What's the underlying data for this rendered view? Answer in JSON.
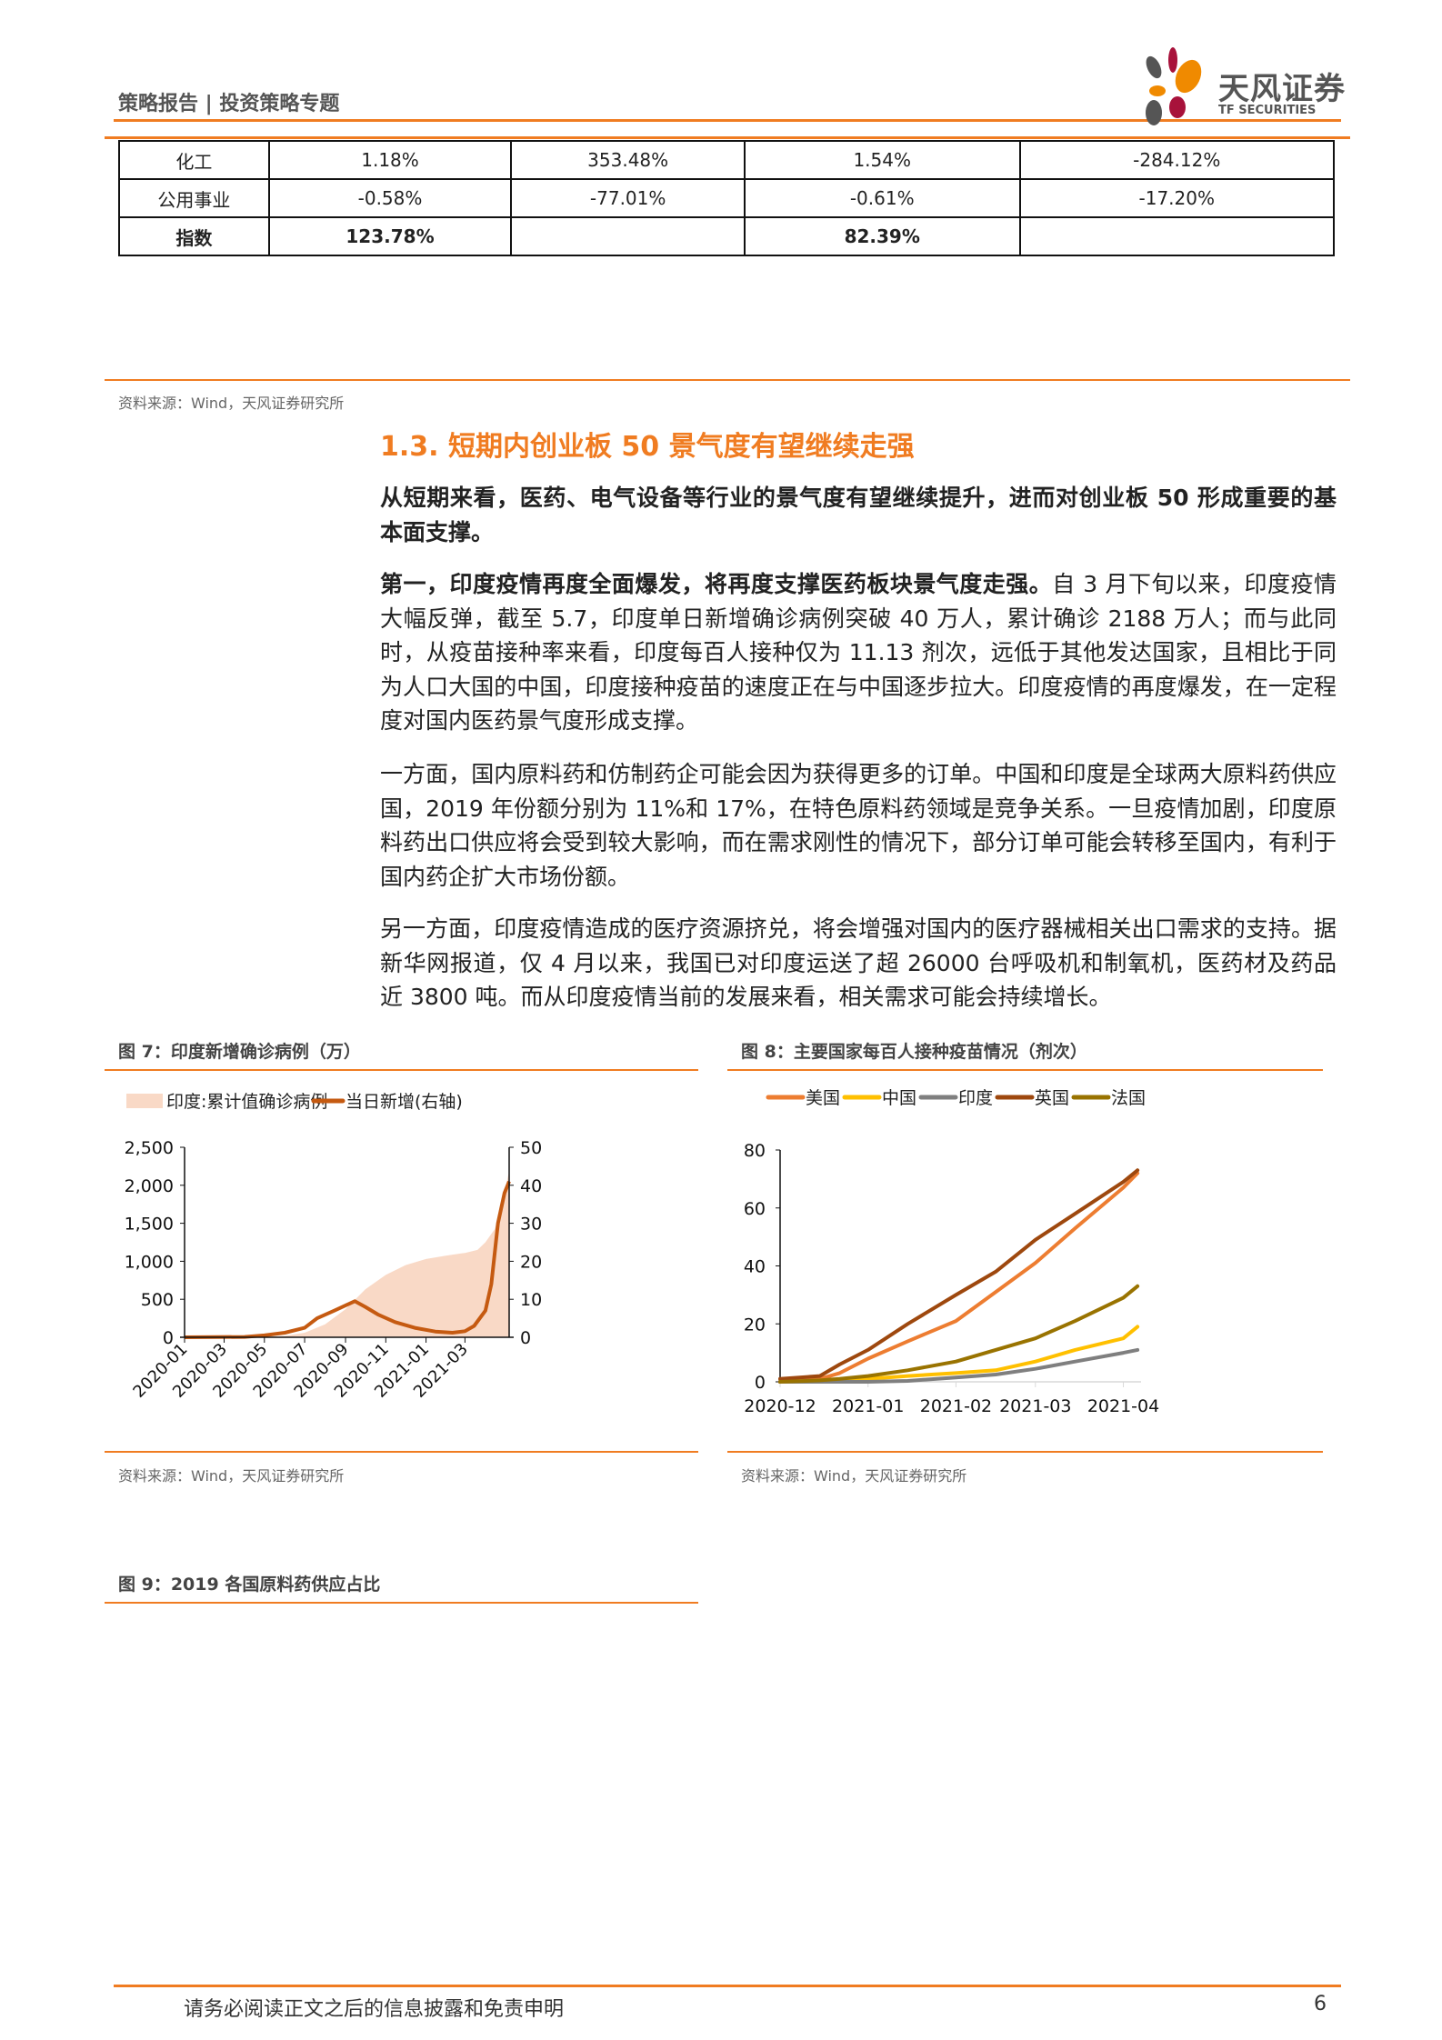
{
  "header": {
    "title": "策略报告 | 投资策略专题",
    "logo_cn": "天风证券",
    "logo_en": "TF SECURITIES"
  },
  "table": {
    "rows": [
      [
        "化工",
        "1.18%",
        "353.48%",
        "1.54%",
        "-284.12%"
      ],
      [
        "公用事业",
        "-0.58%",
        "-77.01%",
        "-0.61%",
        "-17.20%"
      ],
      [
        "指数",
        "123.78%",
        "",
        "82.39%",
        ""
      ]
    ]
  },
  "table_source": "资料来源：Wind，天风证券研究所",
  "section": {
    "heading": "1.3. 短期内创业板 50 景气度有望继续走强"
  },
  "paragraphs": {
    "p1": "从短期来看，医药、电气设备等行业的景气度有望继续提升，进而对创业板 50 形成重要的基本面支撑。",
    "p2_bold": "第一，印度疫情再度全面爆发，将再度支撑医药板块景气度走强。",
    "p2": "自 3 月下旬以来，印度疫情大幅反弹，截至 5.7，印度单日新增确诊病例突破 40 万人，累计确诊 2188 万人；而与此同时，从疫苗接种率来看，印度每百人接种仅为 11.13 剂次，远低于其他发达国家，且相比于同为人口大国的中国，印度接种疫苗的速度正在与中国逐步拉大。印度疫情的再度爆发，在一定程度对国内医药景气度形成支撑。",
    "p3": "一方面，国内原料药和仿制药企可能会因为获得更多的订单。中国和印度是全球两大原料药供应国，2019 年份额分别为 11%和 17%，在特色原料药领域是竞争关系。一旦疫情加剧，印度原料药出口供应将会受到较大影响，而在需求刚性的情况下，部分订单可能会转移至国内，有利于国内药企扩大市场份额。",
    "p4": "另一方面，印度疫情造成的医疗资源挤兑，将会增强对国内的医疗器械相关出口需求的支持。据新华网报道，仅 4 月以来，我国已对印度运送了超 26000 台呼吸机和制氧机，医药材及药品近 3800 吨。而从印度疫情当前的发展来看，相关需求可能会持续增长。"
  },
  "fig7": {
    "title": "图 7：印度新增确诊病例（万）",
    "source": "资料来源：Wind，天风证券研究所"
  },
  "fig8": {
    "title": "图 8：主要国家每百人接种疫苗情况（剂次）",
    "source": "资料来源：Wind，天风证券研究所"
  },
  "fig9": {
    "title": "图 9：2019 各国原料药供应占比"
  },
  "footer": {
    "disclaimer": "请务必阅读正文之后的信息披露和免责申明",
    "page": "6"
  },
  "chart_data": [
    {
      "type": "area+line",
      "legend_position": "top",
      "x_ticks": [
        "2020-01",
        "2020-03",
        "2020-05",
        "2020-07",
        "2020-09",
        "2020-11",
        "2021-01",
        "2021-03"
      ],
      "y_left": {
        "ticks": [
          "0",
          "500",
          "1,000",
          "1,500",
          "2,000",
          "2,500"
        ],
        "range": [
          0,
          2500
        ]
      },
      "y_right": {
        "ticks": [
          "0",
          "10",
          "20",
          "30",
          "40",
          "50"
        ],
        "range": [
          0,
          50
        ]
      },
      "series": [
        {
          "name": "印度:累计值确诊病例",
          "kind": "area",
          "color": "#f9d9c6",
          "axis": "left",
          "x": [
            "2020-01-01",
            "2020-04-01",
            "2020-05-01",
            "2020-06-01",
            "2020-07-01",
            "2020-08-01",
            "2020-09-01",
            "2020-10-01",
            "2020-11-01",
            "2020-12-01",
            "2021-01-01",
            "2021-02-01",
            "2021-03-01",
            "2021-03-20",
            "2021-04-01",
            "2021-04-15",
            "2021-04-25",
            "2021-05-07"
          ],
          "values": [
            0,
            0,
            4,
            19,
            60,
            170,
            370,
            630,
            820,
            950,
            1030,
            1075,
            1110,
            1150,
            1250,
            1420,
            1700,
            2188
          ]
        },
        {
          "name": "当日新增(右轴)",
          "kind": "line",
          "color": "#c55a11",
          "axis": "right",
          "x": [
            "2020-01-01",
            "2020-04-01",
            "2020-05-01",
            "2020-06-01",
            "2020-07-01",
            "2020-07-20",
            "2020-08-15",
            "2020-09-15",
            "2020-10-01",
            "2020-10-20",
            "2020-11-15",
            "2020-12-15",
            "2021-01-15",
            "2021-02-10",
            "2021-03-01",
            "2021-03-15",
            "2021-04-01",
            "2021-04-10",
            "2021-04-20",
            "2021-04-30",
            "2021-05-07"
          ],
          "values": [
            0,
            0.1,
            0.5,
            1.2,
            2.5,
            5,
            7,
            9.5,
            8,
            6,
            4,
            2.5,
            1.5,
            1.2,
            1.6,
            3,
            7,
            14,
            30,
            38,
            41
          ]
        }
      ]
    },
    {
      "type": "line",
      "legend_position": "top",
      "x_ticks": [
        "2020-12",
        "2021-01",
        "2021-02",
        "2021-03",
        "2021-04"
      ],
      "y": {
        "ticks": [
          "0",
          "20",
          "40",
          "60",
          "80"
        ],
        "range": [
          0,
          80
        ]
      },
      "x": [
        "2020-12-01",
        "2020-12-15",
        "2020-12-22",
        "2021-01-01",
        "2021-01-15",
        "2021-02-01",
        "2021-02-15",
        "2021-03-01",
        "2021-03-15",
        "2021-04-01",
        "2021-04-06"
      ],
      "series": [
        {
          "name": "美国",
          "color": "#ed7d31",
          "values": [
            0,
            1,
            3,
            8,
            14,
            21,
            31,
            41,
            53,
            67,
            72
          ]
        },
        {
          "name": "中国",
          "color": "#ffc000",
          "values": [
            0,
            0.3,
            0.6,
            1,
            2,
            3,
            4,
            7,
            11,
            15,
            19
          ]
        },
        {
          "name": "印度",
          "color": "#7f7f7f",
          "values": [
            0,
            0,
            0,
            0,
            0.3,
            1.5,
            2.5,
            4.5,
            7,
            10,
            11
          ]
        },
        {
          "name": "英国",
          "color": "#9e480e",
          "values": [
            1,
            2,
            6,
            11,
            20,
            30,
            38,
            49,
            58,
            69,
            73
          ]
        },
        {
          "name": "法国",
          "color": "#997300",
          "values": [
            0,
            0.5,
            1,
            2,
            4,
            7,
            11,
            15,
            21,
            29,
            33
          ]
        }
      ]
    }
  ]
}
